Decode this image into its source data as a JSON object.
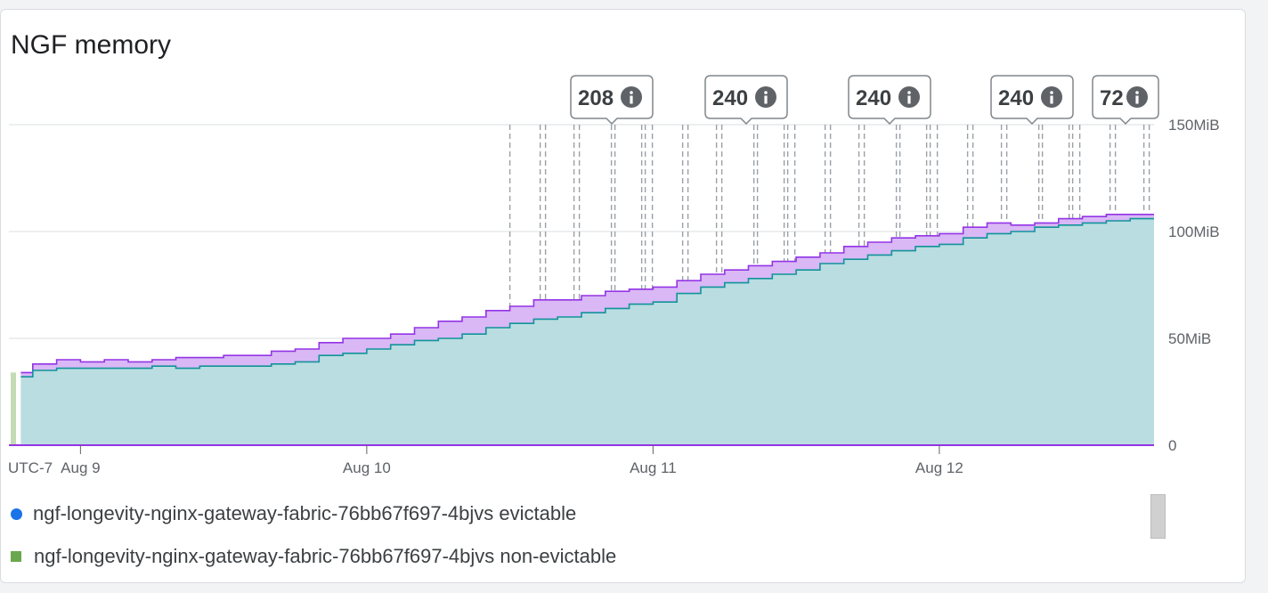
{
  "card": {
    "title": "NGF memory"
  },
  "chart_data": {
    "type": "area",
    "title": "NGF memory",
    "timezone_label": "UTC-7",
    "x_ticks": [
      "Aug 9",
      "Aug 10",
      "Aug 11",
      "Aug 12"
    ],
    "x_start": "Aug 8 18:00",
    "x_end": "Aug 12 18:00",
    "y_unit": "MiB",
    "y_ticks": [
      {
        "value": 0,
        "label": "0"
      },
      {
        "value": 50,
        "label": "50MiB"
      },
      {
        "value": 100,
        "label": "100MiB"
      },
      {
        "value": 150,
        "label": "150MiB"
      }
    ],
    "ylim": [
      0,
      150
    ],
    "grid": true,
    "stacked": true,
    "colors": {
      "evictable": "#9334e6",
      "non_evictable": "#12939a",
      "legend_evictable": "#1a73e8",
      "legend_non_evictable": "#6aa84f"
    },
    "series": [
      {
        "name": "ngf-longevity-nginx-gateway-fabric-76bb67f697-4bjvs evictable",
        "role": "total (stacked top)",
        "points": [
          [
            "Aug 8 19:00",
            34
          ],
          [
            "Aug 8 20:00",
            38
          ],
          [
            "Aug 8 22:00",
            40
          ],
          [
            "Aug 9 00:00",
            39
          ],
          [
            "Aug 9 02:00",
            40
          ],
          [
            "Aug 9 04:00",
            39
          ],
          [
            "Aug 9 06:00",
            40
          ],
          [
            "Aug 9 08:00",
            41
          ],
          [
            "Aug 9 10:00",
            41
          ],
          [
            "Aug 9 12:00",
            42
          ],
          [
            "Aug 9 14:00",
            42
          ],
          [
            "Aug 9 16:00",
            44
          ],
          [
            "Aug 9 18:00",
            45
          ],
          [
            "Aug 9 20:00",
            48
          ],
          [
            "Aug 9 22:00",
            50
          ],
          [
            "Aug 10 00:00",
            50
          ],
          [
            "Aug 10 02:00",
            52
          ],
          [
            "Aug 10 04:00",
            55
          ],
          [
            "Aug 10 06:00",
            58
          ],
          [
            "Aug 10 08:00",
            60
          ],
          [
            "Aug 10 10:00",
            63
          ],
          [
            "Aug 10 12:00",
            65
          ],
          [
            "Aug 10 14:00",
            68
          ],
          [
            "Aug 10 16:00",
            68
          ],
          [
            "Aug 10 18:00",
            70
          ],
          [
            "Aug 10 20:00",
            72
          ],
          [
            "Aug 10 22:00",
            73
          ],
          [
            "Aug 11 00:00",
            74
          ],
          [
            "Aug 11 02:00",
            77
          ],
          [
            "Aug 11 04:00",
            80
          ],
          [
            "Aug 11 06:00",
            82
          ],
          [
            "Aug 11 08:00",
            84
          ],
          [
            "Aug 11 10:00",
            86
          ],
          [
            "Aug 11 12:00",
            88
          ],
          [
            "Aug 11 14:00",
            90
          ],
          [
            "Aug 11 16:00",
            93
          ],
          [
            "Aug 11 18:00",
            95
          ],
          [
            "Aug 11 20:00",
            97
          ],
          [
            "Aug 11 22:00",
            98
          ],
          [
            "Aug 12 00:00",
            99
          ],
          [
            "Aug 12 02:00",
            102
          ],
          [
            "Aug 12 04:00",
            104
          ],
          [
            "Aug 12 06:00",
            103
          ],
          [
            "Aug 12 08:00",
            104
          ],
          [
            "Aug 12 10:00",
            106
          ],
          [
            "Aug 12 12:00",
            107
          ],
          [
            "Aug 12 14:00",
            108
          ],
          [
            "Aug 12 16:00",
            108
          ],
          [
            "Aug 12 18:00",
            108
          ]
        ]
      },
      {
        "name": "ngf-longevity-nginx-gateway-fabric-76bb67f697-4bjvs non-evictable",
        "role": "lower band",
        "points": [
          [
            "Aug 8 19:00",
            32
          ],
          [
            "Aug 8 20:00",
            35
          ],
          [
            "Aug 8 22:00",
            36
          ],
          [
            "Aug 9 00:00",
            36
          ],
          [
            "Aug 9 02:00",
            36
          ],
          [
            "Aug 9 04:00",
            36
          ],
          [
            "Aug 9 06:00",
            37
          ],
          [
            "Aug 9 08:00",
            36
          ],
          [
            "Aug 9 10:00",
            37
          ],
          [
            "Aug 9 12:00",
            37
          ],
          [
            "Aug 9 14:00",
            37
          ],
          [
            "Aug 9 16:00",
            38
          ],
          [
            "Aug 9 18:00",
            39
          ],
          [
            "Aug 9 20:00",
            42
          ],
          [
            "Aug 9 22:00",
            43
          ],
          [
            "Aug 10 00:00",
            45
          ],
          [
            "Aug 10 02:00",
            47
          ],
          [
            "Aug 10 04:00",
            49
          ],
          [
            "Aug 10 06:00",
            50
          ],
          [
            "Aug 10 08:00",
            52
          ],
          [
            "Aug 10 10:00",
            55
          ],
          [
            "Aug 10 12:00",
            57
          ],
          [
            "Aug 10 14:00",
            59
          ],
          [
            "Aug 10 16:00",
            60
          ],
          [
            "Aug 10 18:00",
            62
          ],
          [
            "Aug 10 20:00",
            64
          ],
          [
            "Aug 10 22:00",
            66
          ],
          [
            "Aug 11 00:00",
            67
          ],
          [
            "Aug 11 02:00",
            71
          ],
          [
            "Aug 11 04:00",
            74
          ],
          [
            "Aug 11 06:00",
            76
          ],
          [
            "Aug 11 08:00",
            78
          ],
          [
            "Aug 11 10:00",
            80
          ],
          [
            "Aug 11 12:00",
            82
          ],
          [
            "Aug 11 14:00",
            85
          ],
          [
            "Aug 11 16:00",
            87
          ],
          [
            "Aug 11 18:00",
            89
          ],
          [
            "Aug 11 20:00",
            91
          ],
          [
            "Aug 11 22:00",
            93
          ],
          [
            "Aug 12 00:00",
            94
          ],
          [
            "Aug 12 02:00",
            97
          ],
          [
            "Aug 12 04:00",
            99
          ],
          [
            "Aug 12 06:00",
            100
          ],
          [
            "Aug 12 08:00",
            102
          ],
          [
            "Aug 12 10:00",
            103
          ],
          [
            "Aug 12 12:00",
            104
          ],
          [
            "Aug 12 14:00",
            105
          ],
          [
            "Aug 12 16:00",
            106
          ],
          [
            "Aug 12 18:00",
            106
          ]
        ]
      }
    ],
    "event_badges": [
      {
        "count": "208",
        "time": "Aug 10 12:00",
        "icon": "info-icon"
      },
      {
        "count": "240",
        "time": "Aug 10 21:00",
        "icon": "info-icon"
      },
      {
        "count": "240",
        "time": "Aug 11 09:00",
        "icon": "info-icon"
      },
      {
        "count": "240",
        "time": "Aug 11 21:00",
        "icon": "info-icon"
      },
      {
        "count": "72",
        "time": "Aug 12 09:00",
        "icon": "info-icon"
      }
    ],
    "legend": [
      {
        "label": "ngf-longevity-nginx-gateway-fabric-76bb67f697-4bjvs evictable",
        "marker": "dot",
        "color": "#1a73e8"
      },
      {
        "label": "ngf-longevity-nginx-gateway-fabric-76bb67f697-4bjvs non-evictable",
        "marker": "square",
        "color": "#6aa84f"
      }
    ],
    "legend_position": "bottom"
  }
}
